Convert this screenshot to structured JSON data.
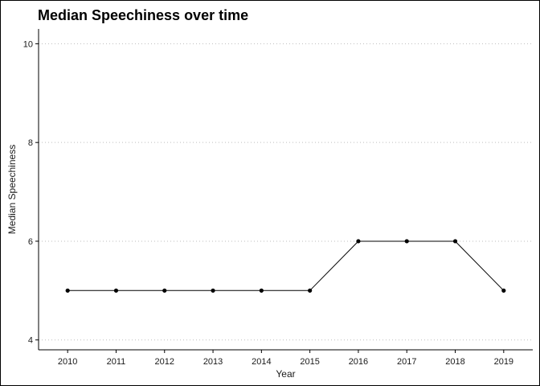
{
  "chart_data": {
    "type": "line",
    "title": "Median Speechiness over time",
    "xlabel": "Year",
    "ylabel": "Median Speechiness",
    "x": [
      2010,
      2011,
      2012,
      2013,
      2014,
      2015,
      2016,
      2017,
      2018,
      2019
    ],
    "series": [
      {
        "values": [
          5,
          5,
          5,
          5,
          5,
          5,
          6,
          6,
          6,
          5
        ]
      }
    ],
    "x_ticks": [
      "2010",
      "2011",
      "2012",
      "2013",
      "2014",
      "2015",
      "2016",
      "2017",
      "2018",
      "2019"
    ],
    "y_ticks": [
      4,
      6,
      8,
      10
    ],
    "y_tick_labels": [
      "4",
      "6",
      "8",
      "10"
    ],
    "ylim": [
      3.8,
      10.3
    ],
    "grid": "horizontal-dotted",
    "colors": {
      "line": "#000000",
      "grid": "#bdbdbd",
      "axis": "#000000"
    }
  }
}
